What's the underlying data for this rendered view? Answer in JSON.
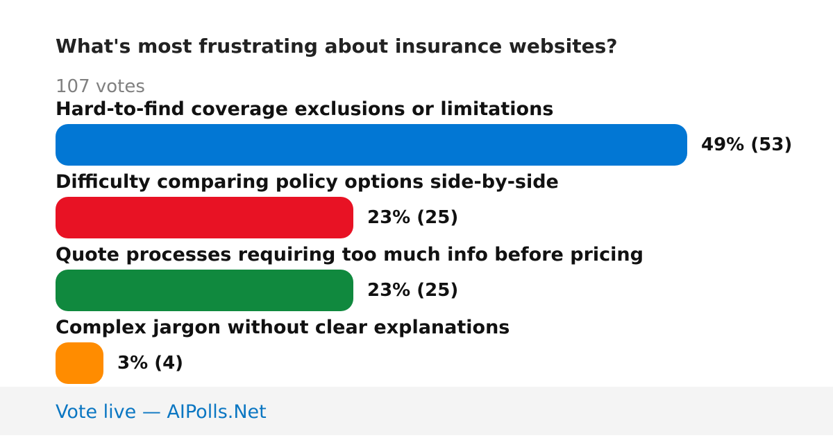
{
  "poll": {
    "title": "What's most frustrating about insurance websites?",
    "votes_label": "107 votes"
  },
  "chart_data": {
    "type": "bar",
    "orientation": "horizontal",
    "categories": [
      "Hard-to-find coverage exclusions or limitations",
      "Difficulty comparing policy options side-by-side",
      "Quote processes requiring too much info before pricing",
      "Complex jargon without clear explanations"
    ],
    "percents": [
      49,
      23,
      23,
      3
    ],
    "counts": [
      53,
      25,
      25,
      4
    ],
    "value_labels": [
      "49% (53)",
      "23% (25)",
      "23% (25)",
      "3% (4)"
    ],
    "colors": [
      "#0277d4",
      "#e81224",
      "#10893e",
      "#ff8c00"
    ],
    "total_votes": 107
  },
  "footer": {
    "link_text": "Vote live — AIPolls.Net"
  }
}
